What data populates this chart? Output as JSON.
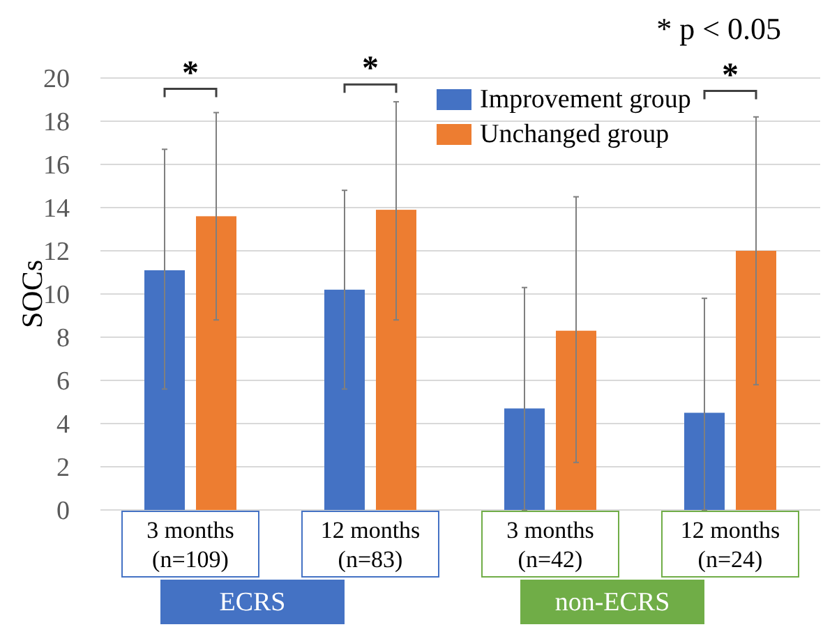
{
  "chart_data": {
    "type": "bar",
    "ylabel": "SOCs",
    "categories": [
      "3 months\n(n=109)",
      "12 months\n(n=83)",
      "3 months\n(n=42)",
      "12 months\n(n=24)"
    ],
    "series": [
      {
        "name": "Improvement group",
        "color": "#4472c4",
        "values": [
          11.1,
          10.2,
          4.7,
          4.5
        ],
        "errors": [
          [
            5.6,
            16.7
          ],
          [
            5.6,
            14.8
          ],
          [
            0,
            10.3
          ],
          [
            0,
            9.8
          ]
        ]
      },
      {
        "name": "Unchanged group",
        "color": "#ed7d31",
        "values": [
          13.6,
          13.9,
          8.3,
          12.0
        ],
        "errors": [
          [
            8.8,
            18.4
          ],
          [
            8.8,
            18.9
          ],
          [
            2.2,
            14.5
          ],
          [
            5.8,
            18.2
          ]
        ]
      }
    ],
    "ylim": [
      0,
      20
    ],
    "yticks": [
      0,
      2,
      4,
      6,
      8,
      10,
      12,
      14,
      16,
      18,
      20
    ],
    "grid": "y",
    "legend": "top right",
    "annotations": [
      "* p < 0.05",
      "*",
      "*",
      "*",
      "ECRS",
      "non-ECRS"
    ]
  }
}
